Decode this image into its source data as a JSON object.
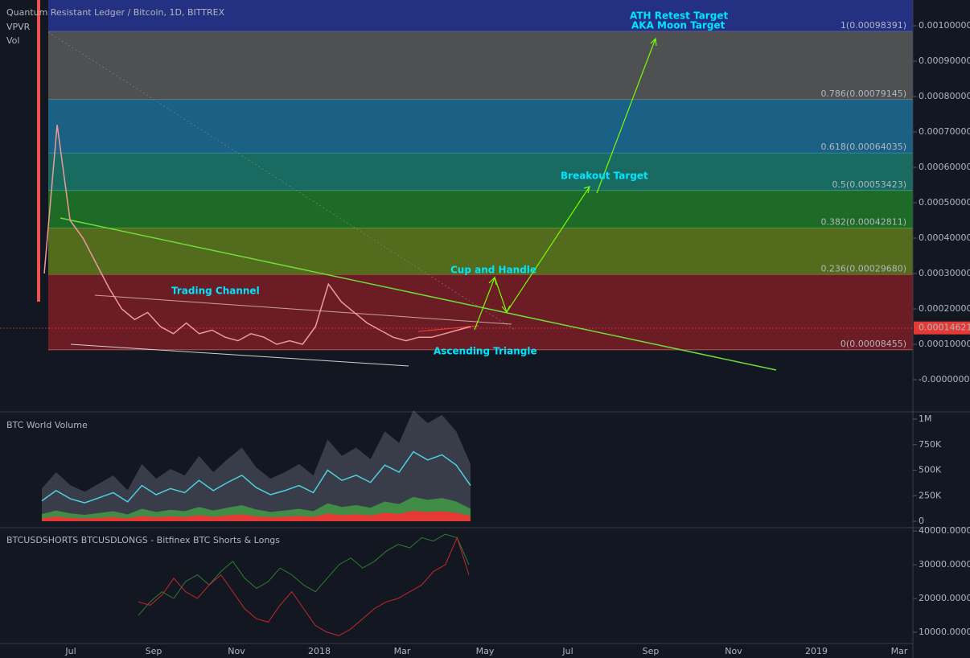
{
  "header": {
    "symbol": "Quantum Resistant Ledger / Bitcoin, 1D, BITTREX",
    "indicators": [
      "VPVR",
      "Vol"
    ]
  },
  "main_pane": {
    "yticks": [
      {
        "value": 0.001,
        "label": "0.00100000"
      },
      {
        "value": 0.0009,
        "label": "0.00090000"
      },
      {
        "value": 0.0008,
        "label": "0.00080000"
      },
      {
        "value": 0.0007,
        "label": "0.00070000"
      },
      {
        "value": 0.0006,
        "label": "0.00060000"
      },
      {
        "value": 0.0005,
        "label": "0.00050000"
      },
      {
        "value": 0.0004,
        "label": "0.00040000"
      },
      {
        "value": 0.0003,
        "label": "0.00030000"
      },
      {
        "value": 0.0002,
        "label": "0.00020000"
      },
      {
        "value": 0.0001,
        "label": "0.00010000"
      },
      {
        "value": 0,
        "label": "-0.00000000"
      }
    ],
    "fib_levels": [
      {
        "label": "1(0.00098391)",
        "value": 0.00098391,
        "color": "#283593",
        "text_color": "#5c6bc0"
      },
      {
        "label": "0.786(0.00079145)",
        "value": 0.00079145,
        "color": "#5a5a5a",
        "text_color": "#8a9099"
      },
      {
        "label": "0.618(0.00064035)",
        "value": 0.00064035,
        "color": "#1d6f97",
        "text_color": "#4aa3d6"
      },
      {
        "label": "0.5(0.00053423)",
        "value": 0.00053423,
        "color": "#1b7a6c",
        "text_color": "#4db6ac"
      },
      {
        "label": "0.382(0.00042811)",
        "value": 0.00042811,
        "color": "#207a28",
        "text_color": "#7cc44a"
      },
      {
        "label": "0.236(0.00029680)",
        "value": 0.0002968,
        "color": "#5e7a1c",
        "text_color": "#b08a3e"
      },
      {
        "label": "0(0.00008455)",
        "value": 8.455e-05,
        "color": "#7d1d24",
        "text_color": "#c05a5a"
      }
    ],
    "last_price": 0.00014621,
    "price_trace": [
      0.0003,
      0.00072,
      0.00045,
      0.0004,
      0.00033,
      0.00026,
      0.0002,
      0.00017,
      0.00019,
      0.00015,
      0.00013,
      0.00016,
      0.00013,
      0.00014,
      0.00012,
      0.00011,
      0.00013,
      0.00012,
      0.0001,
      0.00011,
      0.0001,
      0.00015,
      0.00027,
      0.00022,
      0.00019,
      0.00016,
      0.00014,
      0.00012,
      0.00011,
      0.00012,
      0.00012,
      0.00013,
      0.00014,
      0.00015
    ],
    "annotations": [
      "ATH Retest Target",
      "AKA Moon Target",
      "Breakout Target",
      "Cup and Handle",
      "Trading Channel",
      "Ascending Triangle"
    ]
  },
  "volume_pane": {
    "title": "BTC World Volume",
    "yticks": [
      {
        "value": 1000000,
        "label": "1M"
      },
      {
        "value": 750000,
        "label": "750K"
      },
      {
        "value": 500000,
        "label": "500K"
      },
      {
        "value": 250000,
        "label": "250K"
      },
      0
    ],
    "color": "#4dd0e1",
    "values": [
      200000,
      300000,
      220000,
      180000,
      230000,
      280000,
      190000,
      350000,
      260000,
      320000,
      280000,
      400000,
      300000,
      380000,
      450000,
      330000,
      260000,
      300000,
      350000,
      280000,
      500000,
      400000,
      450000,
      380000,
      550000,
      480000,
      680000,
      600000,
      650000,
      550000,
      350000
    ]
  },
  "shorts_longs_pane": {
    "title": "BTCUSDSHORTS BTCUSDLONGS - Bitfinex BTC Shorts & Longs",
    "yticks": [
      {
        "value": 40000,
        "label": "40000.0000"
      },
      {
        "value": 30000,
        "label": "30000.0000"
      },
      {
        "value": 20000,
        "label": "20000.0000"
      },
      {
        "value": 10000,
        "label": "10000.0000"
      }
    ],
    "series": [
      {
        "color": "#2e7d32",
        "values": [
          15000,
          19000,
          22000,
          20000,
          25000,
          27000,
          24000,
          28000,
          31000,
          26000,
          23000,
          25000,
          29000,
          27000,
          24000,
          22000,
          26000,
          30000,
          32000,
          29000,
          31000,
          34000,
          36000,
          35000,
          38000,
          37000,
          39000,
          38000,
          30000
        ]
      },
      {
        "color": "#c62828",
        "values": [
          19000,
          18000,
          21000,
          26000,
          22000,
          20000,
          24000,
          27000,
          22000,
          17000,
          14000,
          13000,
          18000,
          22000,
          17000,
          12000,
          10000,
          9000,
          11000,
          14000,
          17000,
          19000,
          20000,
          22000,
          24000,
          28000,
          30000,
          38000,
          27000
        ]
      }
    ]
  },
  "x_axis": {
    "labels": [
      "Jul",
      "Sep",
      "Nov",
      "2018",
      "Mar",
      "May",
      "Jul",
      "Sep",
      "Nov",
      "2019",
      "Mar"
    ]
  }
}
